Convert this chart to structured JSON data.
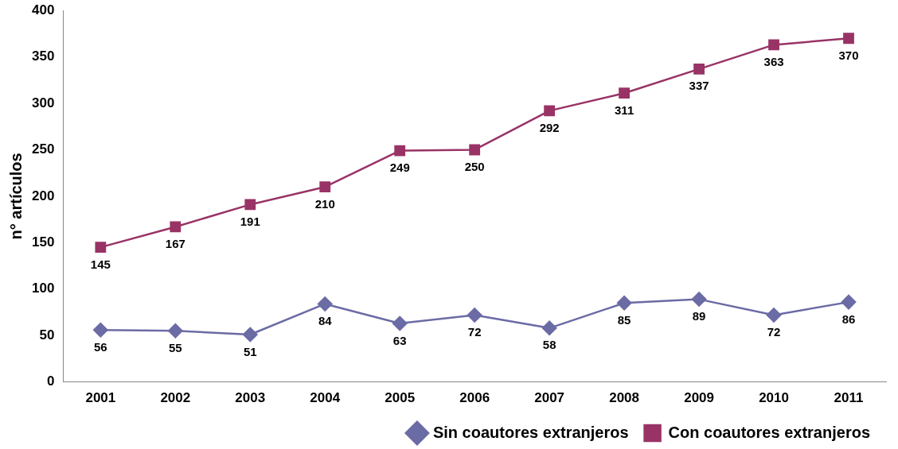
{
  "chart_data": {
    "type": "line",
    "ylabel": "n° artículos",
    "categories": [
      "2001",
      "2002",
      "2003",
      "2004",
      "2005",
      "2006",
      "2007",
      "2008",
      "2009",
      "2010",
      "2011"
    ],
    "series": [
      {
        "name": "Sin coautores extranjeros",
        "color": "#6b6ba5",
        "marker": "diamond",
        "values": [
          56,
          55,
          51,
          84,
          63,
          72,
          58,
          85,
          89,
          72,
          86
        ]
      },
      {
        "name": "Con coautores extranjeros",
        "color": "#993366",
        "marker": "square",
        "values": [
          145,
          167,
          191,
          210,
          249,
          250,
          292,
          311,
          337,
          363,
          370
        ]
      }
    ],
    "ylim": [
      0,
      400
    ],
    "yticks": [
      0,
      50,
      100,
      150,
      200,
      250,
      300,
      350,
      400
    ],
    "grid": false,
    "legend": "bottom",
    "data_labels": true,
    "line_style": "solid"
  }
}
